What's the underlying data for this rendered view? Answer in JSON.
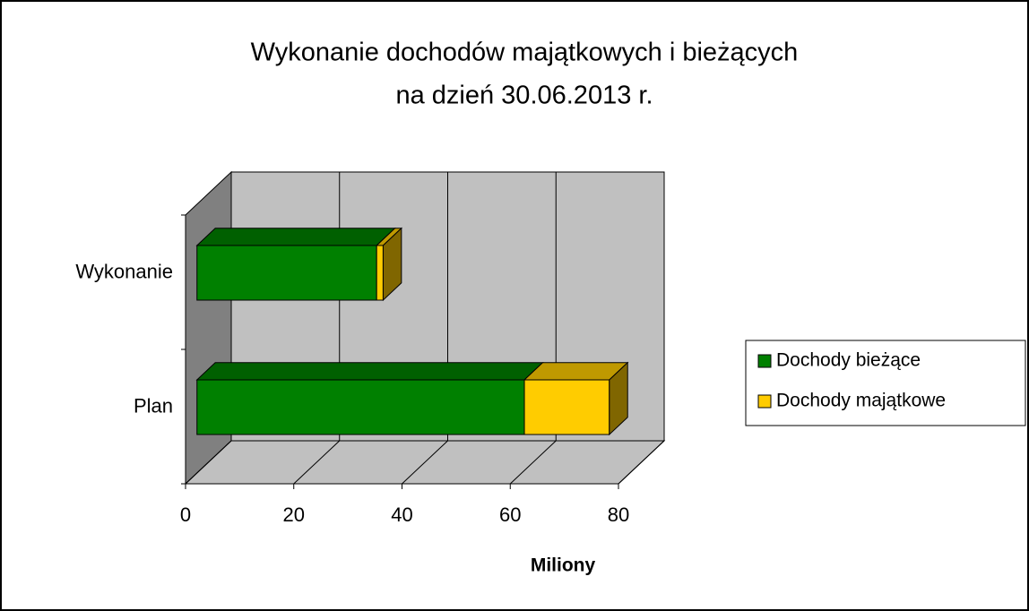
{
  "chart_data": {
    "type": "bar",
    "orientation": "horizontal",
    "stacked": true,
    "title": [
      "Wykonanie dochodów majątkowych i bieżących",
      "na dzień 30.06.2013 r."
    ],
    "categories": [
      "Plan",
      "Wykonanie"
    ],
    "series": [
      {
        "name": "Dochody bieżące",
        "color": "#008000",
        "values": [
          60.5,
          33.2
        ]
      },
      {
        "name": "Dochody majątkowe",
        "color": "#ffcc00",
        "values": [
          15.7,
          1.2
        ]
      }
    ],
    "xlim": [
      0,
      80
    ],
    "xticks": [
      0,
      20,
      40,
      60,
      80
    ],
    "xlabel": "Miliony",
    "grid": true,
    "legend": "right"
  }
}
